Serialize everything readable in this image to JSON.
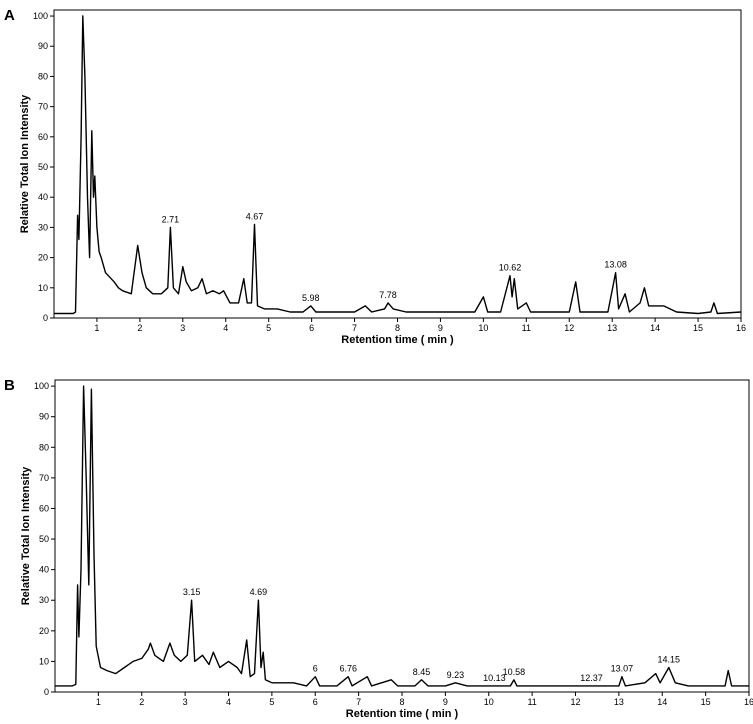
{
  "chart_data": [
    {
      "type": "line",
      "panel_label": "A",
      "x_label": "Retention time ( min )",
      "y_label": "Relative Total Ion Intensity",
      "color": "#000000",
      "x": [
        0,
        0.45,
        0.5,
        0.55,
        0.58,
        0.63,
        0.67,
        0.72,
        0.78,
        0.83,
        0.88,
        0.92,
        0.95,
        1.0,
        1.05,
        1.1,
        1.2,
        1.4,
        1.5,
        1.6,
        1.8,
        1.95,
        2.05,
        2.15,
        2.3,
        2.5,
        2.65,
        2.71,
        2.78,
        2.9,
        3.0,
        3.08,
        3.2,
        3.35,
        3.45,
        3.55,
        3.7,
        3.85,
        3.95,
        4.1,
        4.3,
        4.42,
        4.5,
        4.6,
        4.67,
        4.74,
        4.9,
        5.2,
        5.5,
        5.8,
        5.98,
        6.1,
        6.5,
        7.0,
        7.25,
        7.4,
        7.7,
        7.78,
        7.9,
        8.2,
        8.6,
        9.0,
        9.4,
        9.8,
        10.0,
        10.1,
        10.4,
        10.62,
        10.67,
        10.72,
        10.8,
        11.0,
        11.1,
        11.5,
        12.0,
        12.15,
        12.25,
        12.6,
        12.9,
        13.08,
        13.15,
        13.3,
        13.4,
        13.65,
        13.75,
        13.85,
        14.0,
        14.2,
        14.5,
        15.0,
        15.3,
        15.37,
        15.45,
        16
      ],
      "values": [
        1.5,
        1.5,
        2,
        34,
        26,
        60,
        100,
        80,
        40,
        20,
        62,
        40,
        47,
        30,
        22,
        20,
        15,
        12,
        10,
        9,
        8,
        24,
        15,
        10,
        8,
        8,
        10,
        30,
        10,
        8,
        17,
        12,
        9,
        10,
        13,
        8,
        9,
        8,
        9,
        5,
        5,
        13,
        5,
        5,
        31,
        4,
        3,
        3,
        2,
        2,
        4,
        2,
        2,
        2,
        4,
        2,
        3,
        5,
        3,
        2,
        2,
        2,
        2,
        2,
        7,
        2,
        2,
        14,
        7,
        13,
        3,
        5,
        2,
        2,
        2,
        12,
        2,
        2,
        2,
        15,
        3,
        8,
        2,
        5,
        10,
        4,
        4,
        4,
        2,
        1.5,
        2,
        5,
        1.5,
        2
      ],
      "xlim": [
        0,
        16
      ],
      "xticks": [
        1,
        2,
        3,
        4,
        5,
        6,
        7,
        8,
        9,
        10,
        11,
        12,
        13,
        14,
        15,
        16
      ],
      "ylim": [
        0,
        102
      ],
      "yticks": [
        0,
        10,
        20,
        30,
        40,
        50,
        60,
        70,
        80,
        90,
        100
      ],
      "annotations": [
        2.71,
        4.67,
        5.98,
        7.78,
        10.62,
        13.08
      ]
    },
    {
      "type": "line",
      "panel_label": "B",
      "x_label": "Retention time ( min )",
      "y_label": "Relative Total Ion Intensity",
      "color": "#000000",
      "x": [
        0,
        0.4,
        0.48,
        0.52,
        0.55,
        0.6,
        0.66,
        0.72,
        0.78,
        0.84,
        0.9,
        0.95,
        1.05,
        1.2,
        1.4,
        1.6,
        1.8,
        2.0,
        2.15,
        2.2,
        2.3,
        2.5,
        2.65,
        2.75,
        2.9,
        3.05,
        3.15,
        3.22,
        3.4,
        3.55,
        3.65,
        3.8,
        4.0,
        4.2,
        4.3,
        4.42,
        4.5,
        4.6,
        4.69,
        4.75,
        4.8,
        4.85,
        5.0,
        5.5,
        5.8,
        6.0,
        6.1,
        6.5,
        6.76,
        6.85,
        7.2,
        7.3,
        7.75,
        7.9,
        8.3,
        8.45,
        8.6,
        9.0,
        9.23,
        9.5,
        10.13,
        10.5,
        10.58,
        10.65,
        11.5,
        12.0,
        12.37,
        12.6,
        13.0,
        13.07,
        13.15,
        13.6,
        13.85,
        13.95,
        14.15,
        14.3,
        14.6,
        15.0,
        15.45,
        15.52,
        15.6,
        16
      ],
      "values": [
        2,
        2,
        2.5,
        35,
        18,
        40,
        100,
        70,
        35,
        99,
        45,
        15,
        8,
        7,
        6,
        8,
        10,
        11,
        14,
        16,
        12,
        10,
        16,
        12,
        10,
        12,
        30,
        10,
        12,
        9,
        13,
        8,
        10,
        8,
        6,
        17,
        5,
        6,
        30,
        8,
        13,
        4,
        3,
        3,
        2,
        5,
        2,
        2,
        5,
        2,
        5,
        2,
        4,
        2,
        2,
        4,
        2,
        2,
        3,
        2,
        2,
        2,
        4,
        2,
        2,
        2,
        2,
        2,
        2,
        5,
        2,
        3,
        6,
        3,
        8,
        3,
        2,
        2,
        2,
        7,
        2,
        2
      ],
      "xlim": [
        0,
        16
      ],
      "xticks": [
        1,
        2,
        3,
        4,
        5,
        6,
        7,
        8,
        9,
        10,
        11,
        12,
        13,
        14,
        15,
        16
      ],
      "ylim": [
        0,
        102
      ],
      "yticks": [
        0,
        10,
        20,
        30,
        40,
        50,
        60,
        70,
        80,
        90,
        100
      ],
      "annotations": [
        3.15,
        4.69,
        6,
        6.76,
        8.45,
        9.23,
        10.13,
        10.58,
        12.37,
        13.07,
        14.15
      ]
    }
  ]
}
